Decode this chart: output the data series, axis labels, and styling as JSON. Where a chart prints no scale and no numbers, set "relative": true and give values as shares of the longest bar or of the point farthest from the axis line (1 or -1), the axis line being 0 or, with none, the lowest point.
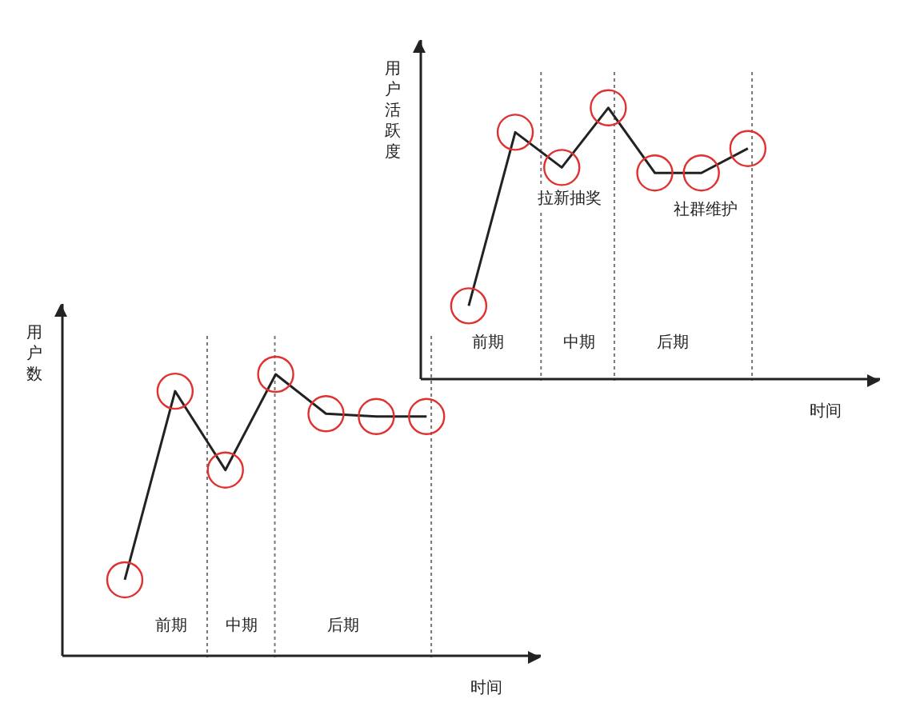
{
  "chart_data": [
    {
      "type": "line",
      "ylabel": "用户数",
      "xlabel": "时间",
      "relative": true,
      "marker": "circle",
      "categories": [
        null,
        null,
        null,
        null,
        null,
        null,
        null
      ],
      "series": [
        {
          "color": "#222222",
          "values": [
            0.27,
            0.94,
            0.66,
            1,
            0.86,
            0.85,
            0.85
          ]
        }
      ],
      "annotations": [
        "前期",
        "中期",
        "后期"
      ]
    },
    {
      "type": "line",
      "ylabel": "用户活跃度",
      "xlabel": "时间",
      "relative": true,
      "marker": "circle",
      "categories": [
        null,
        null,
        null,
        null,
        null,
        null,
        null
      ],
      "series": [
        {
          "color": "#222222",
          "values": [
            0.27,
            0.91,
            0.78,
            1,
            0.76,
            0.76,
            0.85
          ]
        }
      ],
      "annotations": [
        "前期",
        "中期",
        "后期",
        "拉新抽奖",
        "社群维护"
      ]
    }
  ]
}
